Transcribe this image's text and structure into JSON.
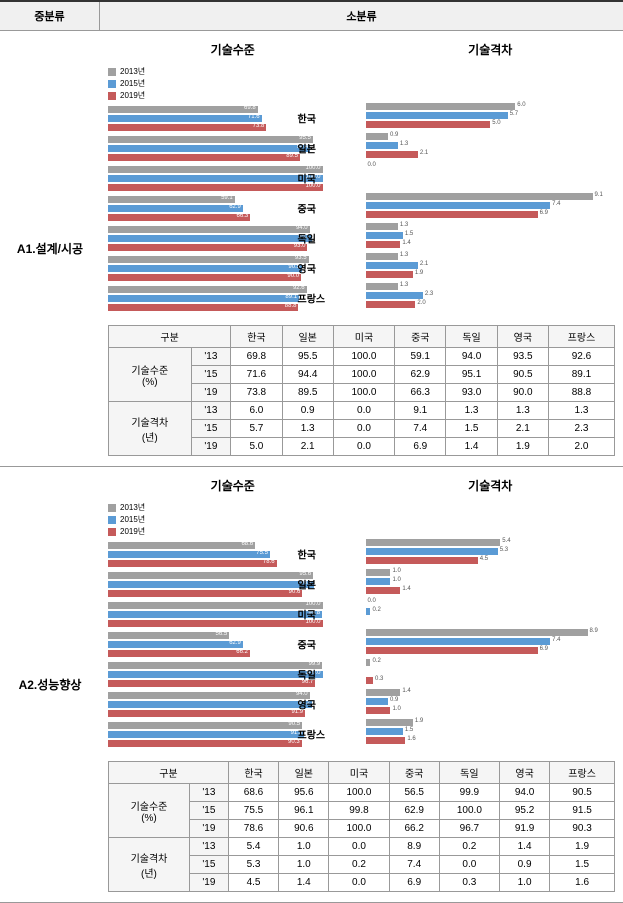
{
  "header": {
    "left": "중분류",
    "right": "소분류"
  },
  "legend": {
    "y1": "2013년",
    "y2": "2015년",
    "y3": "2019년"
  },
  "colors": {
    "y1": "#a0a0a0",
    "y2": "#5b9bd5",
    "y3": "#c55a5a",
    "bg": "#ffffff"
  },
  "chartTitles": {
    "left": "기술수준",
    "right": "기술격차"
  },
  "countries": [
    "한국",
    "일본",
    "미국",
    "중국",
    "독일",
    "영국",
    "프랑스"
  ],
  "tableHeaders": {
    "gubun": "구분",
    "level": "기술수준\n(%)",
    "gap": "기술격차\n(년)",
    "y13": "'13",
    "y15": "'15",
    "y19": "'19"
  },
  "sections": [
    {
      "label": "A1.설계/시공",
      "level": {
        "max": 100,
        "y13": [
          69.8,
          95.5,
          100.0,
          59.1,
          94.0,
          93.5,
          92.6
        ],
        "y15": [
          71.6,
          94.4,
          100.0,
          62.9,
          95.1,
          90.5,
          89.1
        ],
        "y19": [
          73.8,
          89.5,
          100.0,
          66.3,
          93.0,
          90.0,
          88.8
        ]
      },
      "gap": {
        "max": 10,
        "y13": [
          6.0,
          0.9,
          0.0,
          9.1,
          1.3,
          1.3,
          1.3
        ],
        "y15": [
          5.7,
          1.3,
          0.0,
          7.4,
          1.5,
          2.1,
          2.3
        ],
        "y19": [
          5.0,
          2.1,
          0.0,
          6.9,
          1.4,
          1.9,
          2.0
        ]
      }
    },
    {
      "label": "A2.성능향상",
      "level": {
        "max": 100,
        "y13": [
          68.6,
          95.6,
          100.0,
          56.5,
          99.9,
          94.0,
          90.5
        ],
        "y15": [
          75.5,
          96.1,
          99.8,
          62.9,
          100.0,
          95.2,
          91.5
        ],
        "y19": [
          78.6,
          90.6,
          100.0,
          66.2,
          96.7,
          91.9,
          90.3
        ]
      },
      "gap": {
        "max": 10,
        "y13": [
          5.4,
          1.0,
          0.0,
          8.9,
          0.2,
          1.4,
          1.9
        ],
        "y15": [
          5.3,
          1.0,
          0.2,
          7.4,
          0.0,
          0.9,
          1.5
        ],
        "y19": [
          4.5,
          1.4,
          0.0,
          6.9,
          0.3,
          1.0,
          1.6
        ]
      }
    }
  ]
}
